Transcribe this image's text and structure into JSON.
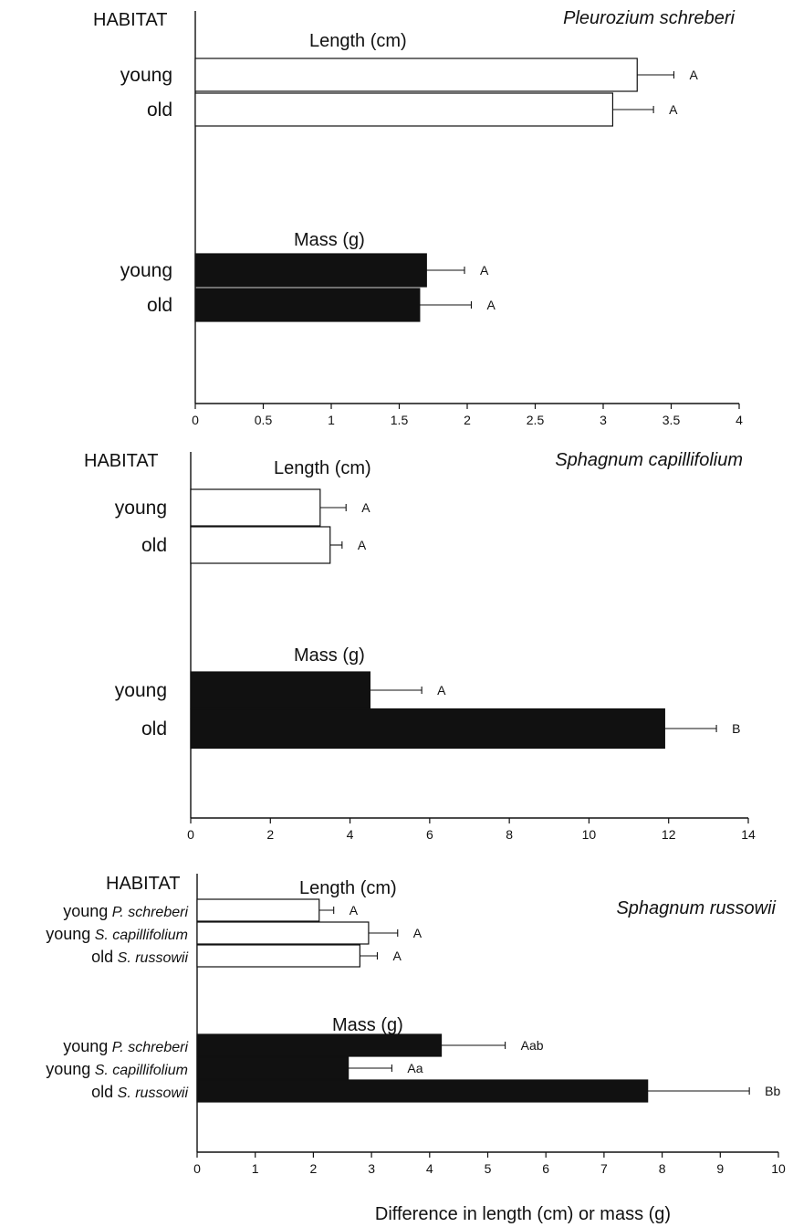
{
  "chart_data": [
    {
      "type": "bar",
      "title": "Pleurozium schreberi",
      "habitat_label": "HABITAT",
      "xlim": [
        0,
        4
      ],
      "xticks": [
        0,
        0.5,
        1,
        1.5,
        2,
        2.5,
        3,
        3.5,
        4
      ],
      "tick_labels": [
        "0",
        "0.5",
        "1",
        "1.5",
        "2",
        "2.5",
        "3",
        "3.5",
        "4"
      ],
      "groups": [
        {
          "label": "Length (cm)",
          "fill": "#ffffff",
          "bars": [
            {
              "habitat": "young",
              "species": "",
              "value": 3.25,
              "error": 0.27,
              "letter": "A"
            },
            {
              "habitat": "old",
              "species": "",
              "value": 3.07,
              "error": 0.3,
              "letter": "A"
            }
          ]
        },
        {
          "label": "Mass (g)",
          "fill": "#111111",
          "bars": [
            {
              "habitat": "young",
              "species": "",
              "value": 1.7,
              "error": 0.28,
              "letter": "A"
            },
            {
              "habitat": "old",
              "species": "",
              "value": 1.65,
              "error": 0.38,
              "letter": "A"
            }
          ]
        }
      ]
    },
    {
      "type": "bar",
      "title": "Sphagnum capillifolium",
      "habitat_label": "HABITAT",
      "xlim": [
        0,
        14
      ],
      "xticks": [
        0,
        2,
        4,
        6,
        8,
        10,
        12,
        14
      ],
      "tick_labels": [
        "0",
        "2",
        "4",
        "6",
        "8",
        "10",
        "12",
        "14"
      ],
      "groups": [
        {
          "label": "Length (cm)",
          "fill": "#ffffff",
          "bars": [
            {
              "habitat": "young",
              "species": "",
              "value": 3.25,
              "error": 0.65,
              "letter": "A"
            },
            {
              "habitat": "old",
              "species": "",
              "value": 3.5,
              "error": 0.3,
              "letter": "A"
            }
          ]
        },
        {
          "label": "Mass (g)",
          "fill": "#111111",
          "bars": [
            {
              "habitat": "young",
              "species": "",
              "value": 4.5,
              "error": 1.3,
              "letter": "A"
            },
            {
              "habitat": "old",
              "species": "",
              "value": 11.9,
              "error": 1.3,
              "letter": "B"
            }
          ]
        }
      ]
    },
    {
      "type": "bar",
      "title": "Sphagnum russowii",
      "habitat_label": "HABITAT",
      "xlim": [
        0,
        10
      ],
      "xticks": [
        0,
        1,
        2,
        3,
        4,
        5,
        6,
        7,
        8,
        9,
        10
      ],
      "tick_labels": [
        "0",
        "1",
        "2",
        "3",
        "4",
        "5",
        "6",
        "7",
        "8",
        "9",
        "10"
      ],
      "xlabel": "Difference in length (cm) or mass (g)",
      "groups": [
        {
          "label": "Length (cm)",
          "fill": "#ffffff",
          "bars": [
            {
              "habitat": "young",
              "species": "P. schreberi",
              "value": 2.1,
              "error": 0.25,
              "letter": "A"
            },
            {
              "habitat": "young",
              "species": "S. capillifolium",
              "value": 2.95,
              "error": 0.5,
              "letter": "A"
            },
            {
              "habitat": "old",
              "species": "S. russowii",
              "value": 2.8,
              "error": 0.3,
              "letter": "A"
            }
          ]
        },
        {
          "label": "Mass (g)",
          "fill": "#111111",
          "bars": [
            {
              "habitat": "young",
              "species": "P. schreberi",
              "value": 4.2,
              "error": 1.1,
              "letter": "Aab"
            },
            {
              "habitat": "young",
              "species": "S. capillifolium",
              "value": 2.6,
              "error": 0.75,
              "letter": "Aa"
            },
            {
              "habitat": "old",
              "species": "S. russowii",
              "value": 7.75,
              "error": 1.75,
              "letter": "Bb"
            }
          ]
        }
      ]
    }
  ]
}
